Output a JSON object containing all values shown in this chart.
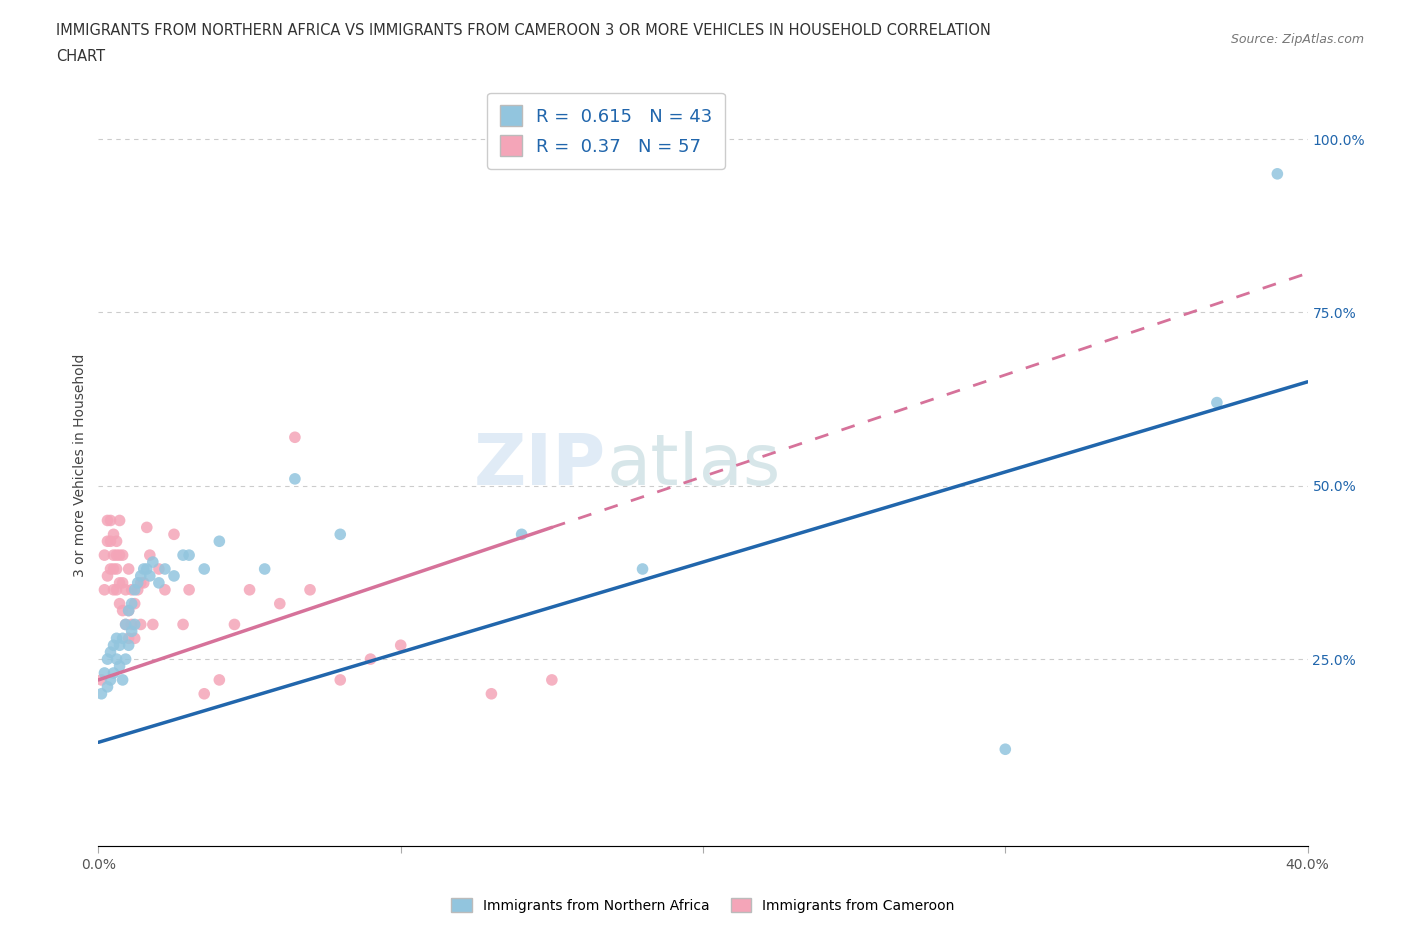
{
  "title_line1": "IMMIGRANTS FROM NORTHERN AFRICA VS IMMIGRANTS FROM CAMEROON 3 OR MORE VEHICLES IN HOUSEHOLD CORRELATION",
  "title_line2": "CHART",
  "source": "Source: ZipAtlas.com",
  "ylabel": "3 or more Vehicles in Household",
  "xlim": [
    0.0,
    0.4
  ],
  "ylim": [
    -0.02,
    1.08
  ],
  "blue_R": 0.615,
  "blue_N": 43,
  "pink_R": 0.37,
  "pink_N": 57,
  "blue_color": "#92C5DE",
  "pink_color": "#F4A5B8",
  "blue_line_color": "#2166AC",
  "pink_line_color": "#D6729A",
  "grid_color": "#CCCCCC",
  "blue_x": [
    0.001,
    0.002,
    0.003,
    0.003,
    0.004,
    0.004,
    0.005,
    0.005,
    0.006,
    0.006,
    0.007,
    0.007,
    0.008,
    0.008,
    0.009,
    0.009,
    0.01,
    0.01,
    0.011,
    0.011,
    0.012,
    0.012,
    0.013,
    0.014,
    0.015,
    0.016,
    0.017,
    0.018,
    0.02,
    0.022,
    0.025,
    0.028,
    0.03,
    0.035,
    0.04,
    0.055,
    0.065,
    0.08,
    0.14,
    0.18,
    0.3,
    0.37,
    0.39
  ],
  "blue_y": [
    0.2,
    0.23,
    0.21,
    0.25,
    0.22,
    0.26,
    0.23,
    0.27,
    0.25,
    0.28,
    0.24,
    0.27,
    0.22,
    0.28,
    0.25,
    0.3,
    0.27,
    0.32,
    0.29,
    0.33,
    0.3,
    0.35,
    0.36,
    0.37,
    0.38,
    0.38,
    0.37,
    0.39,
    0.36,
    0.38,
    0.37,
    0.4,
    0.4,
    0.38,
    0.42,
    0.38,
    0.51,
    0.43,
    0.43,
    0.38,
    0.12,
    0.62,
    0.95
  ],
  "pink_x": [
    0.001,
    0.002,
    0.002,
    0.003,
    0.003,
    0.003,
    0.004,
    0.004,
    0.004,
    0.005,
    0.005,
    0.005,
    0.005,
    0.006,
    0.006,
    0.006,
    0.006,
    0.007,
    0.007,
    0.007,
    0.007,
    0.008,
    0.008,
    0.008,
    0.009,
    0.009,
    0.01,
    0.01,
    0.01,
    0.011,
    0.011,
    0.012,
    0.012,
    0.013,
    0.014,
    0.014,
    0.015,
    0.016,
    0.017,
    0.018,
    0.02,
    0.022,
    0.025,
    0.028,
    0.03,
    0.035,
    0.04,
    0.045,
    0.05,
    0.06,
    0.065,
    0.07,
    0.08,
    0.09,
    0.1,
    0.13,
    0.15
  ],
  "pink_y": [
    0.22,
    0.35,
    0.4,
    0.37,
    0.42,
    0.45,
    0.38,
    0.42,
    0.45,
    0.35,
    0.38,
    0.4,
    0.43,
    0.35,
    0.38,
    0.4,
    0.42,
    0.33,
    0.36,
    0.4,
    0.45,
    0.32,
    0.36,
    0.4,
    0.3,
    0.35,
    0.28,
    0.32,
    0.38,
    0.3,
    0.35,
    0.28,
    0.33,
    0.35,
    0.3,
    0.36,
    0.36,
    0.44,
    0.4,
    0.3,
    0.38,
    0.35,
    0.43,
    0.3,
    0.35,
    0.2,
    0.22,
    0.3,
    0.35,
    0.33,
    0.57,
    0.35,
    0.22,
    0.25,
    0.27,
    0.2,
    0.22
  ],
  "blue_trend": [
    0.0,
    0.4,
    0.13,
    0.65
  ],
  "pink_trend": [
    0.0,
    0.15,
    0.22,
    0.44
  ]
}
